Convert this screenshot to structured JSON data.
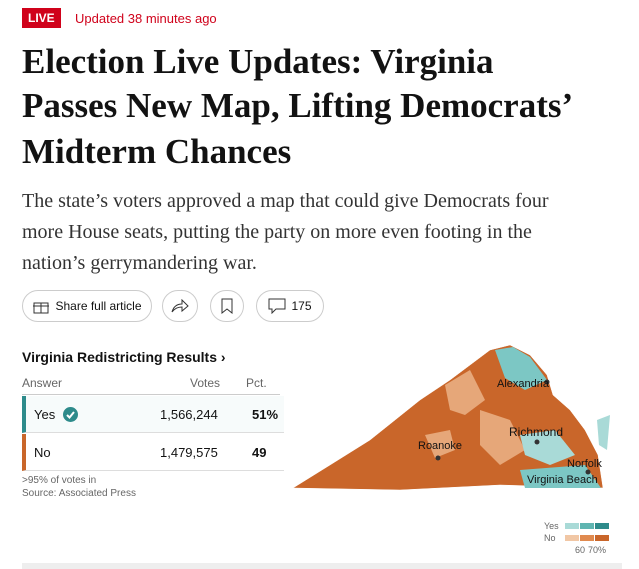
{
  "header": {
    "badge": "LIVE",
    "updated": "Updated 38 minutes ago"
  },
  "headline": [
    "Election Live Updates: Virginia",
    "Passes New Map, Lifting Democrats’",
    "Midterm Chances"
  ],
  "summary": [
    "The state’s voters approved a map that could give Democrats four",
    "more House seats, putting the party on more even footing in the",
    "nation’s gerrymandering war."
  ],
  "actions": {
    "share": "Share full article",
    "comments": "175"
  },
  "results": {
    "title": "Virginia Redistricting Results ›",
    "headers": [
      "Answer",
      "Votes",
      "Pct."
    ],
    "rows": [
      [
        "Yes",
        "1,566,244",
        "51%"
      ],
      [
        "No",
        "1,479,575",
        "49"
      ]
    ],
    "note": ">95% of votes in",
    "source": "Source: Associated Press"
  },
  "map": {
    "labels": [
      "Alexandria",
      "Richmond",
      "Roanoke",
      "Norfolk",
      "Virginia Beach"
    ],
    "legend": {
      "yes": "Yes",
      "no": "No",
      "low": "60",
      "high": "70%"
    }
  }
}
